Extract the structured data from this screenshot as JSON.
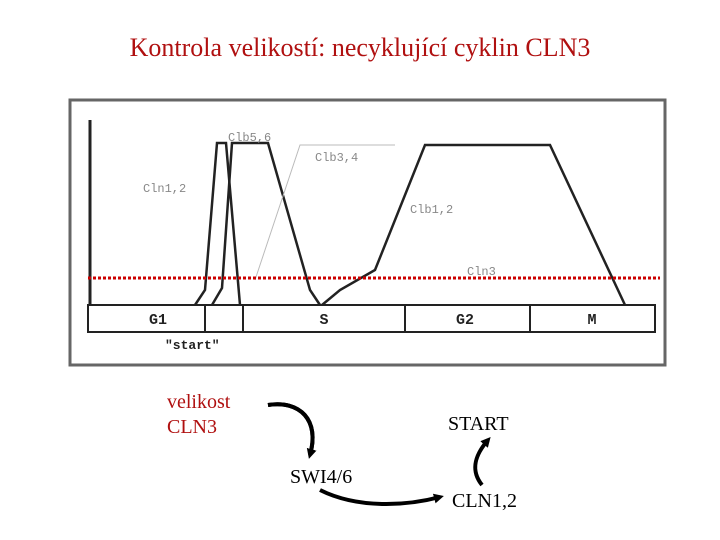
{
  "title": "Kontrola velikostí: necyklující cyklin CLN3",
  "figure": {
    "curves": [
      "Clb5,6",
      "Clb3,4",
      "Cln1,2",
      "Clb1,2",
      "Cln3"
    ],
    "phases": [
      "G1",
      "S",
      "G2",
      "M"
    ],
    "marker": "\"start\""
  },
  "cycle": {
    "nodes": [
      {
        "lines": [
          "velikost",
          "CLN3"
        ]
      },
      {
        "lines": [
          "START"
        ]
      },
      {
        "lines": [
          "SWI4/6"
        ]
      },
      {
        "lines": [
          "CLN1,2"
        ]
      }
    ]
  }
}
